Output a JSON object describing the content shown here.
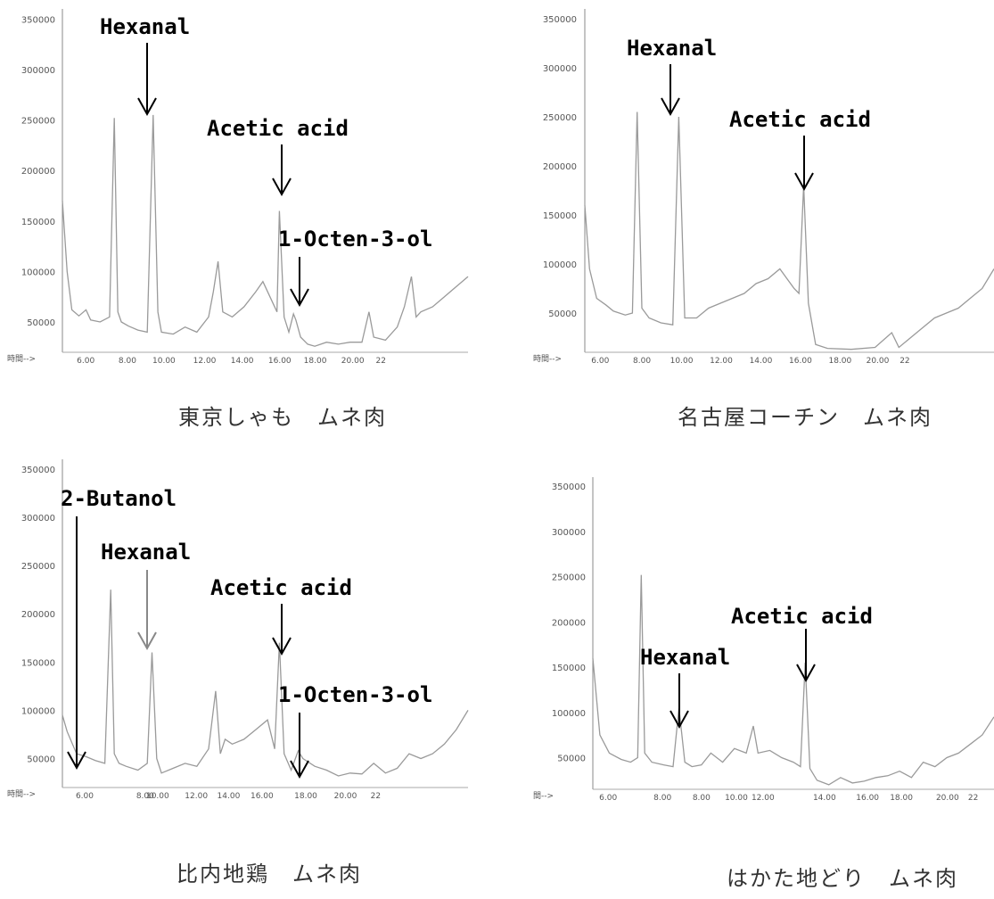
{
  "chart_data": [
    {
      "type": "line",
      "caption": "東京しゃも　ムネ肉",
      "xaxis_label": "時間-->",
      "xticks": [
        "6.00",
        "8.00",
        "10.00",
        "12.00",
        "14.00",
        "16.00",
        "18.00",
        "20.00",
        "22"
      ],
      "xlim": [
        4.8,
        22
      ],
      "yticks": [
        "350000",
        "300000",
        "250000",
        "200000",
        "150000",
        "100000",
        "50000"
      ],
      "ylim": [
        20000,
        360000
      ],
      "line_color": "#9a9a9a",
      "series": [
        {
          "x": [
            4.8,
            5.0,
            5.2,
            5.5,
            5.8,
            6.0,
            6.4,
            6.8,
            7.0,
            7.15,
            7.3,
            7.6,
            8.0,
            8.4,
            8.65,
            8.85,
            9.0,
            9.5,
            10.0,
            10.5,
            11.0,
            11.2,
            11.4,
            11.6,
            12.0,
            12.5,
            13.0,
            13.3,
            13.6,
            13.9,
            14.0,
            14.2,
            14.4,
            14.6,
            14.7,
            14.9,
            15.2,
            15.5,
            16.0,
            16.5,
            17.0,
            17.5,
            17.8,
            18.0,
            18.5,
            19.0,
            19.3,
            19.6,
            19.8,
            20.0,
            20.5,
            21.0,
            21.5,
            22.0
          ],
          "y": [
            170000,
            100000,
            62000,
            56000,
            62000,
            52000,
            50000,
            55000,
            252000,
            60000,
            50000,
            46000,
            42000,
            40000,
            255000,
            60000,
            40000,
            38000,
            45000,
            40000,
            55000,
            80000,
            110000,
            60000,
            55000,
            65000,
            80000,
            90000,
            75000,
            60000,
            160000,
            55000,
            40000,
            58000,
            52000,
            35000,
            28000,
            26000,
            30000,
            28000,
            30000,
            30000,
            60000,
            35000,
            32000,
            45000,
            65000,
            95000,
            55000,
            60000,
            65000,
            75000,
            85000,
            95000
          ]
        }
      ],
      "annotations": [
        {
          "label": "Hexanal",
          "x": 8.65
        },
        {
          "label": "Acetic acid",
          "x": 14.0
        },
        {
          "label": "1-Octen-3-ol",
          "x": 14.7
        }
      ]
    },
    {
      "type": "line",
      "caption": "名古屋コーチン　ムネ肉",
      "xaxis_label": "時間-->",
      "xticks": [
        "6.00",
        "8.00",
        "10.00",
        "12.00",
        "14.00",
        "16.00",
        "18.00",
        "20.00",
        "22"
      ],
      "xlim": [
        4.8,
        22
      ],
      "yticks": [
        "350000",
        "300000",
        "250000",
        "200000",
        "150000",
        "100000",
        "50000"
      ],
      "ylim": [
        10000,
        360000
      ],
      "line_color": "#9a9a9a",
      "series": [
        {
          "x": [
            4.8,
            5.0,
            5.3,
            5.7,
            6.0,
            6.5,
            6.8,
            7.0,
            7.2,
            7.5,
            8.0,
            8.5,
            8.75,
            9.0,
            9.5,
            10.0,
            10.5,
            11.0,
            11.5,
            12.0,
            12.5,
            13.0,
            13.3,
            13.6,
            13.8,
            14.0,
            14.2,
            14.5,
            15.0,
            16.0,
            17.0,
            17.7,
            18.0,
            18.5,
            19.0,
            19.5,
            20.0,
            20.5,
            21.0,
            21.5,
            22.0
          ],
          "y": [
            160000,
            95000,
            65000,
            58000,
            52000,
            48000,
            50000,
            255000,
            55000,
            45000,
            40000,
            38000,
            250000,
            45000,
            45000,
            55000,
            60000,
            65000,
            70000,
            80000,
            85000,
            95000,
            85000,
            75000,
            70000,
            180000,
            60000,
            18000,
            14000,
            13000,
            15000,
            30000,
            15000,
            25000,
            35000,
            45000,
            50000,
            55000,
            65000,
            75000,
            95000
          ]
        }
      ],
      "annotations": [
        {
          "label": "Hexanal",
          "x": 8.75
        },
        {
          "label": "Acetic acid",
          "x": 14.0
        }
      ]
    },
    {
      "type": "line",
      "caption": "比内地鶏　ムネ肉",
      "xaxis_label": "時間-->",
      "xticks": [
        "6.00",
        "8.00",
        "10.00",
        "12.00",
        "14.00",
        "16.00",
        "18.00",
        "20.00",
        "22"
      ],
      "xlim": [
        4.8,
        22
      ],
      "yticks": [
        "350000",
        "300000",
        "250000",
        "200000",
        "150000",
        "100000",
        "50000"
      ],
      "ylim": [
        20000,
        360000
      ],
      "line_color": "#9a9a9a",
      "series": [
        {
          "x": [
            4.8,
            5.0,
            5.4,
            5.8,
            6.2,
            6.6,
            6.85,
            7.0,
            7.2,
            7.5,
            8.0,
            8.4,
            8.6,
            8.8,
            9.0,
            9.5,
            10.0,
            10.5,
            11.0,
            11.3,
            11.5,
            11.7,
            12.0,
            12.5,
            13.0,
            13.5,
            13.8,
            14.0,
            14.2,
            14.5,
            14.8,
            15.0,
            15.5,
            16.0,
            16.5,
            17.0,
            17.5,
            18.0,
            18.5,
            19.0,
            19.5,
            20.0,
            20.5,
            21.0,
            21.5,
            22.0
          ],
          "y": [
            95000,
            78000,
            55000,
            52000,
            48000,
            45000,
            225000,
            55000,
            45000,
            42000,
            38000,
            45000,
            160000,
            50000,
            35000,
            40000,
            45000,
            42000,
            60000,
            120000,
            55000,
            70000,
            65000,
            70000,
            80000,
            90000,
            60000,
            170000,
            55000,
            38000,
            58000,
            50000,
            42000,
            38000,
            32000,
            35000,
            34000,
            45000,
            35000,
            40000,
            55000,
            50000,
            55000,
            65000,
            80000,
            100000
          ]
        }
      ],
      "annotations": [
        {
          "label": "2-Butanol",
          "x": 5.3
        },
        {
          "label": "Hexanal",
          "x": 8.6
        },
        {
          "label": "Acetic acid",
          "x": 14.0
        },
        {
          "label": "1-Octen-3-ol",
          "x": 14.8
        }
      ]
    },
    {
      "type": "line",
      "caption": "はかた地どり　ムネ肉",
      "xaxis_label": "間-->",
      "xticks": [
        "6.00",
        "8.00",
        "8.00",
        "10.00",
        "12.00",
        "14.00",
        "16.00",
        "18.00",
        "20.00",
        "22"
      ],
      "xlim": [
        5.0,
        22
      ],
      "yticks": [
        "350000",
        "300000",
        "250000",
        "200000",
        "150000",
        "100000",
        "50000"
      ],
      "ylim": [
        15000,
        360000
      ],
      "line_color": "#9a9a9a",
      "series": [
        {
          "x": [
            5.0,
            5.3,
            5.7,
            6.2,
            6.6,
            6.9,
            7.05,
            7.2,
            7.5,
            8.0,
            8.4,
            8.65,
            8.9,
            9.2,
            9.6,
            10.0,
            10.5,
            11.0,
            11.5,
            11.8,
            12.0,
            12.5,
            13.0,
            13.5,
            13.8,
            14.0,
            14.2,
            14.5,
            15.0,
            15.5,
            16.0,
            16.5,
            17.0,
            17.5,
            18.0,
            18.5,
            19.0,
            19.5,
            20.0,
            20.5,
            21.0,
            21.5,
            22.0
          ],
          "y": [
            160000,
            75000,
            55000,
            48000,
            45000,
            50000,
            252000,
            55000,
            45000,
            42000,
            40000,
            105000,
            45000,
            40000,
            42000,
            55000,
            45000,
            60000,
            55000,
            85000,
            55000,
            58000,
            50000,
            45000,
            40000,
            155000,
            38000,
            25000,
            20000,
            28000,
            22000,
            24000,
            28000,
            30000,
            35000,
            28000,
            45000,
            40000,
            50000,
            55000,
            65000,
            75000,
            95000
          ]
        }
      ],
      "annotations": [
        {
          "label": "Hexanal",
          "x": 8.65
        },
        {
          "label": "Acetic acid",
          "x": 14.0
        }
      ]
    }
  ]
}
